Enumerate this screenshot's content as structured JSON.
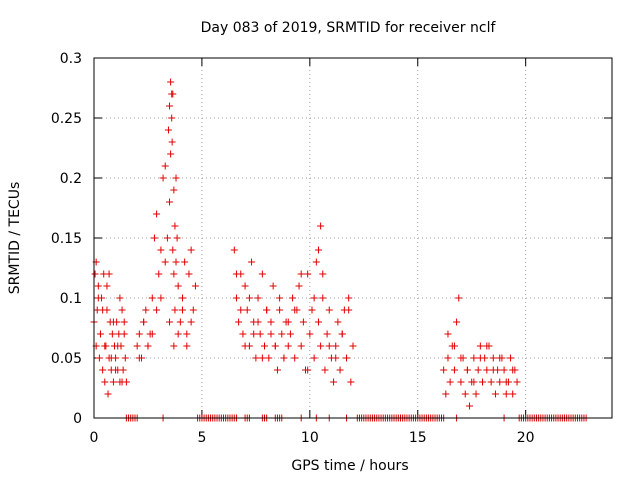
{
  "chart_data": {
    "type": "scatter",
    "title": "Day 083 of 2019, SRMTID for receiver nclf",
    "xlabel": "GPS time / hours",
    "ylabel": "SRMTID / TECUs",
    "xlim": [
      0,
      24
    ],
    "ylim": [
      0,
      0.3
    ],
    "xticks": [
      0,
      5,
      10,
      15,
      20
    ],
    "yticks": [
      0,
      0.05,
      0.1,
      0.15,
      0.2,
      0.25,
      0.3
    ],
    "ytick_labels": [
      "0",
      "0.05",
      "0.1",
      "0.15",
      "0.2",
      "0.25",
      "0.3"
    ],
    "grid": true,
    "marker": "+",
    "color": "#e00000",
    "series": [
      {
        "x": [
          0.0,
          0.05,
          0.1,
          0.15,
          0.2,
          0.25,
          0.3,
          0.35,
          0.4,
          0.45,
          0.5,
          0.55,
          0.6,
          0.65,
          0.7,
          0.75,
          0.8,
          0.85,
          0.9,
          0.95,
          1.0,
          1.05,
          1.1,
          1.15,
          1.2,
          1.25,
          1.3,
          1.35,
          1.4,
          1.45,
          1.5,
          0.1,
          0.2,
          0.3,
          0.4,
          0.5,
          0.6,
          0.7,
          0.8,
          0.9,
          1.0,
          1.1,
          1.2,
          1.3,
          1.4,
          2.0,
          2.1,
          2.2,
          2.3,
          2.4,
          2.5,
          2.6,
          2.7,
          2.8,
          2.9,
          3.0,
          3.1,
          3.2,
          3.3,
          3.4,
          3.5,
          3.55,
          3.6,
          3.65,
          3.7,
          3.75,
          3.8,
          3.9,
          4.0,
          4.1,
          4.2,
          4.3,
          4.4,
          4.5,
          4.6,
          4.7,
          2.1,
          2.3,
          2.5,
          2.7,
          2.9,
          3.1,
          3.3,
          3.5,
          3.7,
          3.9,
          4.1,
          4.3,
          4.5,
          3.45,
          3.5,
          3.55,
          3.6,
          3.62,
          3.65,
          3.7,
          3.75,
          3.8,
          3.85,
          6.5,
          6.6,
          6.7,
          6.8,
          6.9,
          7.0,
          7.1,
          7.2,
          7.3,
          7.4,
          7.5,
          7.6,
          7.7,
          7.8,
          7.9,
          8.0,
          8.1,
          8.2,
          8.3,
          8.4,
          8.5,
          8.6,
          8.7,
          8.8,
          8.9,
          9.0,
          6.6,
          6.8,
          7.0,
          7.2,
          7.4,
          7.6,
          7.8,
          8.0,
          8.2,
          8.4,
          8.6,
          8.8,
          9.0,
          9.1,
          9.2,
          9.3,
          9.4,
          9.5,
          9.6,
          9.7,
          9.8,
          9.9,
          10.0,
          10.1,
          10.2,
          10.3,
          10.4,
          10.5,
          10.6,
          10.7,
          10.8,
          10.9,
          11.0,
          11.1,
          11.2,
          11.3,
          11.4,
          11.5,
          11.6,
          11.7,
          11.8,
          11.9,
          12.0,
          9.3,
          9.6,
          9.9,
          10.2,
          10.4,
          10.5,
          10.6,
          10.9,
          11.2,
          11.5,
          11.8,
          16.2,
          16.3,
          16.4,
          16.5,
          16.6,
          16.7,
          16.8,
          16.9,
          17.0,
          17.1,
          17.2,
          17.3,
          17.4,
          17.5,
          17.6,
          17.7,
          17.8,
          17.9,
          18.0,
          18.1,
          18.2,
          18.3,
          18.4,
          18.5,
          18.6,
          18.7,
          18.8,
          18.9,
          19.0,
          19.1,
          19.2,
          19.3,
          19.4,
          19.5,
          19.6,
          16.4,
          16.7,
          17.0,
          17.3,
          17.6,
          17.9,
          18.2,
          18.5,
          18.8,
          19.1,
          19.4
        ],
        "y": [
          0.08,
          0.12,
          0.06,
          0.09,
          0.11,
          0.05,
          0.07,
          0.1,
          0.04,
          0.12,
          0.03,
          0.06,
          0.09,
          0.02,
          0.05,
          0.08,
          0.04,
          0.07,
          0.03,
          0.06,
          0.05,
          0.08,
          0.04,
          0.07,
          0.03,
          0.06,
          0.09,
          0.04,
          0.07,
          0.05,
          0.03,
          0.13,
          0.1,
          0.07,
          0.09,
          0.06,
          0.11,
          0.12,
          0.05,
          0.08,
          0.04,
          0.06,
          0.1,
          0.03,
          0.08,
          0.06,
          0.07,
          0.05,
          0.08,
          0.09,
          0.06,
          0.07,
          0.1,
          0.15,
          0.17,
          0.12,
          0.14,
          0.2,
          0.21,
          0.15,
          0.18,
          0.22,
          0.27,
          0.14,
          0.12,
          0.09,
          0.13,
          0.11,
          0.08,
          0.1,
          0.13,
          0.07,
          0.12,
          0.14,
          0.09,
          0.11,
          0.05,
          0.08,
          0.06,
          0.07,
          0.09,
          0.1,
          0.13,
          0.08,
          0.06,
          0.07,
          0.09,
          0.06,
          0.08,
          0.24,
          0.26,
          0.28,
          0.25,
          0.23,
          0.27,
          0.19,
          0.16,
          0.2,
          0.15,
          0.14,
          0.1,
          0.08,
          0.12,
          0.07,
          0.11,
          0.09,
          0.06,
          0.13,
          0.08,
          0.05,
          0.1,
          0.07,
          0.12,
          0.06,
          0.09,
          0.05,
          0.08,
          0.11,
          0.06,
          0.04,
          0.09,
          0.07,
          0.05,
          0.08,
          0.06,
          0.12,
          0.09,
          0.06,
          0.1,
          0.07,
          0.08,
          0.05,
          0.09,
          0.07,
          0.06,
          0.1,
          0.05,
          0.08,
          0.07,
          0.1,
          0.05,
          0.09,
          0.11,
          0.06,
          0.08,
          0.04,
          0.12,
          0.07,
          0.09,
          0.05,
          0.13,
          0.08,
          0.06,
          0.1,
          0.04,
          0.07,
          0.09,
          0.05,
          0.03,
          0.06,
          0.08,
          0.04,
          0.07,
          0.09,
          0.05,
          0.1,
          0.03,
          0.06,
          0.09,
          0.12,
          0.04,
          0.1,
          0.14,
          0.16,
          0.12,
          0.06,
          0.05,
          0.07,
          0.09,
          0.04,
          0.02,
          0.05,
          0.03,
          0.06,
          0.04,
          0.08,
          0.1,
          0.03,
          0.05,
          0.02,
          0.04,
          0.01,
          0.03,
          0.05,
          0.02,
          0.04,
          0.06,
          0.03,
          0.05,
          0.04,
          0.06,
          0.03,
          0.05,
          0.02,
          0.04,
          0.03,
          0.05,
          0.04,
          0.02,
          0.03,
          0.05,
          0.02,
          0.04,
          0.03,
          0.07,
          0.06,
          0.05,
          0.04,
          0.03,
          0.05,
          0.06,
          0.04,
          0.05,
          0.03,
          0.04
        ]
      },
      {
        "name": "",
        "x": [
          1.5,
          1.6,
          1.7,
          1.8,
          1.9,
          2.0,
          3.2,
          4.8,
          4.9,
          5.0,
          5.1,
          5.2,
          5.3,
          5.4,
          5.5,
          5.6,
          5.7,
          5.8,
          5.9,
          6.0,
          6.1,
          6.2,
          6.3,
          6.4,
          6.5,
          6.6,
          7.0,
          7.1,
          7.2,
          7.8,
          7.9,
          8.0,
          8.4,
          8.5,
          8.6,
          8.7,
          9.6,
          10.3,
          10.9,
          11.7,
          12.2,
          12.3,
          12.4,
          12.5,
          12.6,
          12.7,
          12.8,
          12.9,
          13.0,
          13.1,
          13.2,
          13.3,
          13.4,
          13.5,
          13.6,
          13.7,
          13.8,
          13.9,
          14.0,
          14.1,
          14.2,
          14.3,
          14.4,
          14.5,
          14.6,
          14.7,
          14.8,
          14.9,
          15.0,
          15.1,
          15.2,
          15.3,
          15.4,
          15.5,
          15.6,
          15.7,
          15.8,
          15.9,
          16.0,
          16.1,
          16.2,
          16.8,
          19.0,
          19.7,
          19.8,
          19.9,
          20.0,
          20.1,
          20.2,
          20.3,
          20.4,
          20.5,
          20.6,
          20.7,
          20.8,
          20.9,
          21.0,
          21.1,
          21.2,
          21.3,
          21.4,
          21.5,
          21.6,
          21.7,
          21.8,
          21.9,
          22.0,
          22.1,
          22.2,
          22.3,
          22.4,
          22.5,
          22.6,
          22.7,
          22.8
        ],
        "y_value": 0
      }
    ]
  }
}
